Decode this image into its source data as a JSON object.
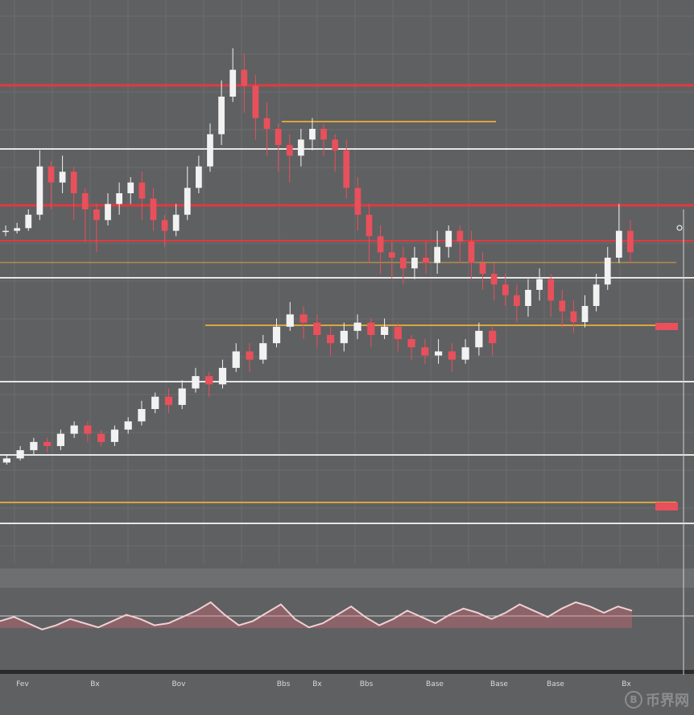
{
  "chart_data": {
    "type": "candlestick",
    "title": "",
    "xlabel": "",
    "ylabel": "",
    "grid": true,
    "colors": {
      "background": "#5f6062",
      "grid": "#6c6d6f",
      "up": "#f2f2f2",
      "down": "#e8505b",
      "resistance": "#e03a3f",
      "support": "#e6e6e6",
      "level_gold": "#d9a63c",
      "oscillator": "#f0d0d4",
      "oscillator_fill": "#e06a78"
    },
    "upper_series": {
      "name": "",
      "ohlc": [
        [
          56,
          56,
          58,
          54
        ],
        [
          56,
          57,
          59,
          55
        ],
        [
          57,
          62,
          64,
          56
        ],
        [
          62,
          80,
          86,
          60
        ],
        [
          80,
          74,
          82,
          64
        ],
        [
          74,
          78,
          84,
          70
        ],
        [
          78,
          70,
          80,
          60
        ],
        [
          70,
          64,
          72,
          52
        ],
        [
          64,
          60,
          66,
          48
        ],
        [
          60,
          66,
          70,
          58
        ],
        [
          66,
          70,
          74,
          62
        ],
        [
          70,
          74,
          76,
          66
        ],
        [
          74,
          68,
          78,
          60
        ],
        [
          68,
          60,
          72,
          56
        ],
        [
          60,
          56,
          62,
          50
        ],
        [
          56,
          62,
          66,
          54
        ],
        [
          62,
          72,
          80,
          60
        ],
        [
          72,
          80,
          84,
          70
        ],
        [
          80,
          92,
          96,
          78
        ],
        [
          92,
          106,
          112,
          88
        ],
        [
          106,
          116,
          124,
          104
        ],
        [
          116,
          110,
          122,
          100
        ],
        [
          110,
          98,
          114,
          90
        ],
        [
          98,
          94,
          104,
          84
        ],
        [
          94,
          88,
          96,
          78
        ],
        [
          88,
          84,
          92,
          74
        ],
        [
          84,
          90,
          94,
          80
        ],
        [
          90,
          94,
          98,
          86
        ],
        [
          94,
          90,
          96,
          84
        ],
        [
          90,
          86,
          92,
          78
        ],
        [
          86,
          72,
          90,
          68
        ],
        [
          72,
          62,
          76,
          56
        ],
        [
          62,
          54,
          66,
          44
        ],
        [
          54,
          48,
          58,
          40
        ],
        [
          48,
          46,
          52,
          38
        ],
        [
          46,
          42,
          50,
          36
        ],
        [
          42,
          46,
          50,
          38
        ],
        [
          46,
          44,
          52,
          40
        ],
        [
          44,
          50,
          56,
          40
        ],
        [
          50,
          56,
          58,
          46
        ],
        [
          56,
          52,
          58,
          44
        ],
        [
          52,
          44,
          56,
          38
        ],
        [
          44,
          40,
          48,
          34
        ],
        [
          40,
          36,
          44,
          30
        ],
        [
          36,
          32,
          40,
          28
        ],
        [
          32,
          28,
          36,
          22
        ],
        [
          28,
          34,
          38,
          24
        ],
        [
          34,
          38,
          42,
          30
        ],
        [
          38,
          30,
          40,
          24
        ],
        [
          30,
          26,
          34,
          20
        ],
        [
          26,
          22,
          30,
          18
        ],
        [
          22,
          28,
          32,
          20
        ],
        [
          28,
          36,
          40,
          26
        ],
        [
          36,
          46,
          50,
          34
        ],
        [
          46,
          56,
          66,
          44
        ],
        [
          56,
          48,
          60,
          44
        ]
      ]
    },
    "lower_series": {
      "name": "",
      "ohlc": [
        [
          20,
          22,
          24,
          19
        ],
        [
          22,
          26,
          28,
          21
        ],
        [
          26,
          30,
          32,
          24
        ],
        [
          30,
          28,
          32,
          25
        ],
        [
          28,
          34,
          36,
          26
        ],
        [
          34,
          38,
          40,
          32
        ],
        [
          38,
          34,
          40,
          30
        ],
        [
          34,
          30,
          36,
          28
        ],
        [
          30,
          36,
          38,
          28
        ],
        [
          36,
          40,
          42,
          34
        ],
        [
          40,
          46,
          50,
          38
        ],
        [
          46,
          52,
          54,
          44
        ],
        [
          52,
          48,
          56,
          44
        ],
        [
          48,
          56,
          60,
          46
        ],
        [
          56,
          62,
          66,
          54
        ],
        [
          62,
          58,
          64,
          52
        ],
        [
          58,
          66,
          70,
          56
        ],
        [
          66,
          74,
          78,
          64
        ],
        [
          74,
          70,
          78,
          64
        ],
        [
          70,
          78,
          82,
          68
        ],
        [
          78,
          86,
          90,
          76
        ],
        [
          86,
          92,
          98,
          84
        ],
        [
          92,
          88,
          96,
          80
        ],
        [
          88,
          82,
          92,
          76
        ],
        [
          82,
          78,
          86,
          72
        ],
        [
          78,
          84,
          88,
          74
        ],
        [
          84,
          88,
          92,
          80
        ],
        [
          88,
          82,
          90,
          76
        ],
        [
          82,
          86,
          90,
          80
        ],
        [
          86,
          80,
          88,
          74
        ],
        [
          80,
          76,
          82,
          70
        ],
        [
          76,
          72,
          80,
          68
        ],
        [
          72,
          74,
          80,
          68
        ],
        [
          74,
          70,
          78,
          64
        ],
        [
          70,
          76,
          80,
          68
        ],
        [
          76,
          84,
          88,
          72
        ],
        [
          84,
          78,
          86,
          72
        ]
      ]
    },
    "oscillator": {
      "values": [
        42,
        46,
        40,
        34,
        38,
        44,
        40,
        36,
        42,
        48,
        44,
        38,
        40,
        46,
        52,
        60,
        48,
        38,
        42,
        50,
        58,
        44,
        36,
        40,
        48,
        56,
        46,
        38,
        44,
        52,
        46,
        40,
        48,
        54,
        50,
        44,
        50,
        58,
        52,
        46,
        54,
        60,
        56,
        50,
        56,
        52
      ]
    }
  },
  "xaxis_ticks": [
    "Fev",
    "Bx",
    "Bov",
    "Bbs",
    "Bx",
    "Bbs",
    "Base",
    "Base",
    "Base",
    "Bx"
  ],
  "watermark": {
    "logo": "B",
    "text": "币界网"
  }
}
